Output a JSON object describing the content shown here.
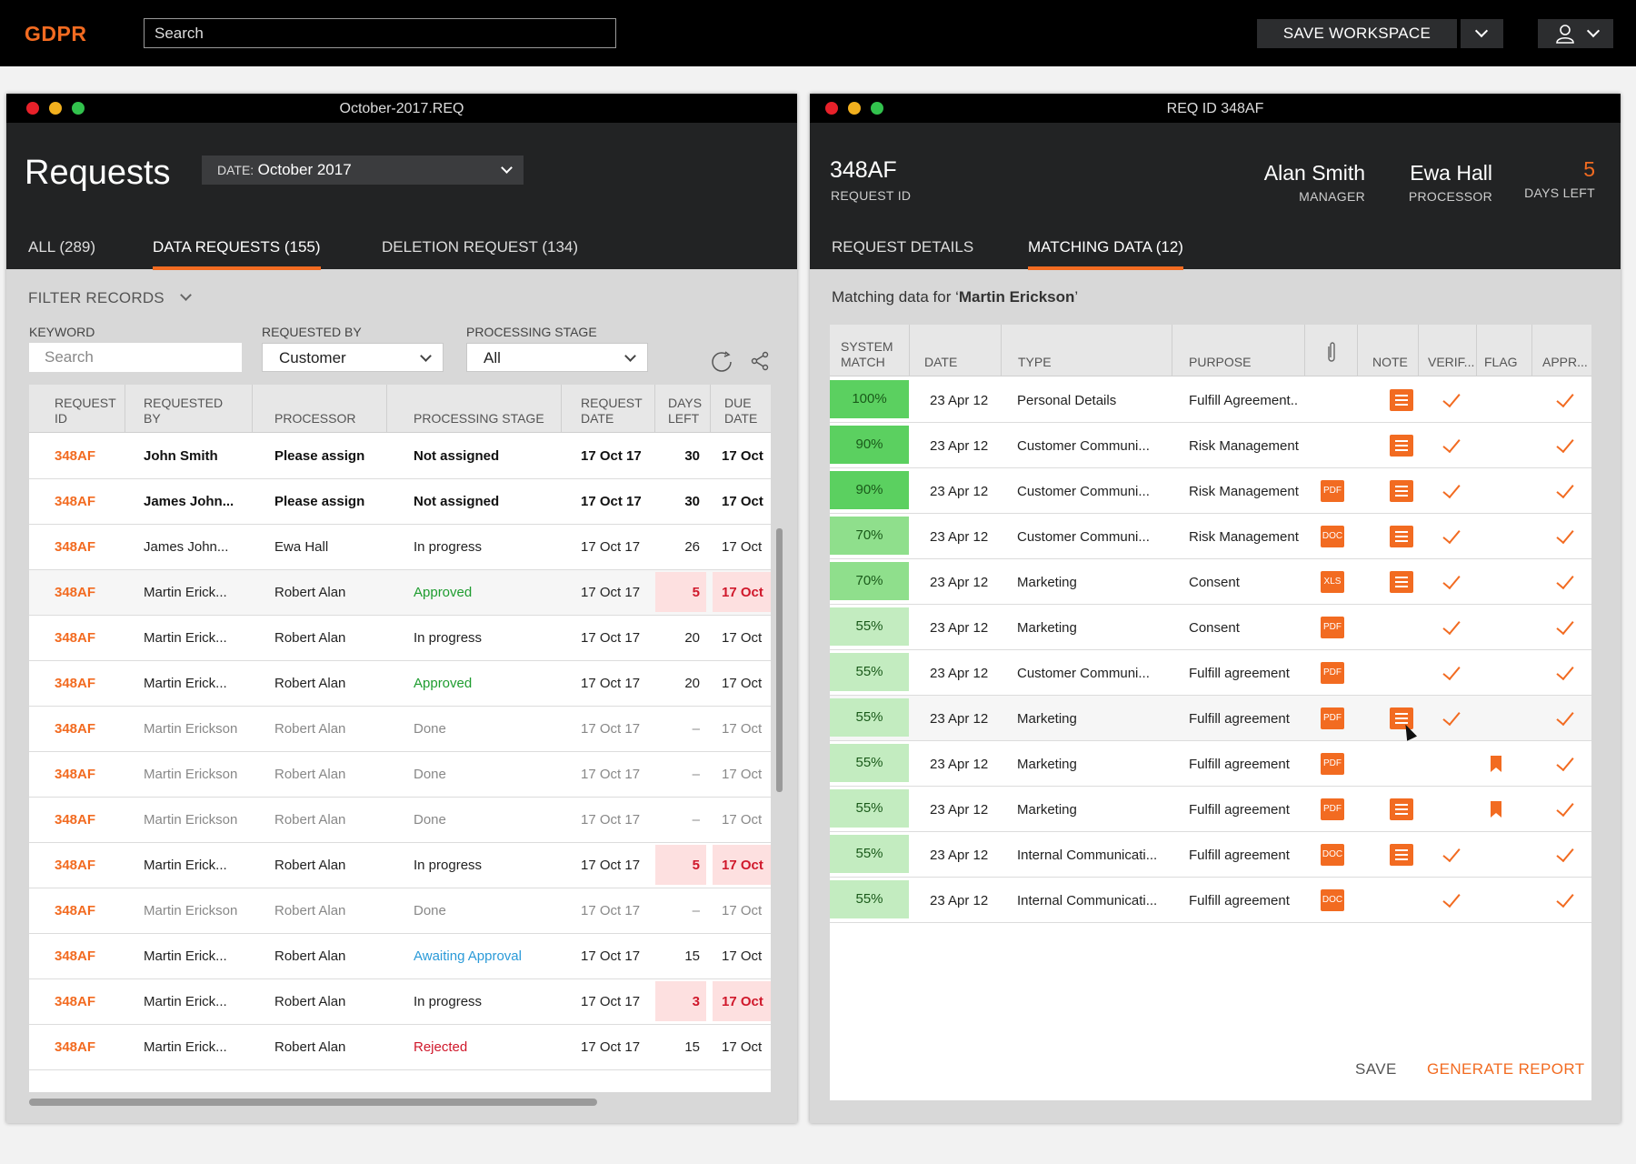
{
  "topbar": {
    "brand": "GDPR",
    "search_placeholder": "Search",
    "save_workspace": "SAVE WORKSPACE"
  },
  "left": {
    "window_title": "October-2017.REQ",
    "title": "Requests",
    "date_label": "DATE:",
    "date_value": "October 2017",
    "tabs": [
      "ALL (289)",
      "DATA REQUESTS (155)",
      "DELETION REQUEST (134)"
    ],
    "active_tab": 1,
    "filter_title": "FILTER RECORDS",
    "filters": {
      "keyword_label": "KEYWORD",
      "keyword_placeholder": "Search",
      "requested_by_label": "REQUESTED BY",
      "requested_by_value": "Customer",
      "stage_label": "PROCESSING STAGE",
      "stage_value": "All"
    },
    "columns": [
      "REQUEST ID",
      "REQUESTED BY",
      "PROCESSOR",
      "PROCESSING STAGE",
      "REQUEST DATE",
      "DAYS LEFT",
      "DUE DATE"
    ],
    "rows": [
      {
        "id": "348AF",
        "by": "John Smith",
        "processor": "Please assign",
        "stage": "Not assigned",
        "date": "17 Oct 17",
        "days": "30",
        "due": "17 Oct",
        "style": "bold",
        "pstyle": "orange",
        "sstyle": "",
        "alert": false
      },
      {
        "id": "348AF",
        "by": "James John...",
        "processor": "Please assign",
        "stage": "Not assigned",
        "date": "17 Oct 17",
        "days": "30",
        "due": "17 Oct",
        "style": "bold",
        "pstyle": "orange",
        "sstyle": "",
        "alert": false
      },
      {
        "id": "348AF",
        "by": "James John...",
        "processor": "Ewa Hall",
        "stage": "In progress",
        "date": "17 Oct 17",
        "days": "26",
        "due": "17 Oct",
        "style": "",
        "pstyle": "",
        "sstyle": "",
        "alert": false
      },
      {
        "id": "348AF",
        "by": "Martin Erick...",
        "processor": "Robert Alan",
        "stage": "Approved",
        "date": "17 Oct 17",
        "days": "5",
        "due": "17 Oct",
        "style": "",
        "pstyle": "",
        "sstyle": "green",
        "alert": true
      },
      {
        "id": "348AF",
        "by": "Martin Erick...",
        "processor": "Robert Alan",
        "stage": "In progress",
        "date": "17 Oct 17",
        "days": "20",
        "due": "17 Oct",
        "style": "",
        "pstyle": "",
        "sstyle": "",
        "alert": false
      },
      {
        "id": "348AF",
        "by": "Martin Erick...",
        "processor": "Robert Alan",
        "stage": "Approved",
        "date": "17 Oct 17",
        "days": "20",
        "due": "17 Oct",
        "style": "",
        "pstyle": "",
        "sstyle": "green",
        "alert": false
      },
      {
        "id": "348AF",
        "by": "Martin Erickson",
        "processor": "Robert Alan",
        "stage": "Done",
        "date": "17 Oct 17",
        "days": "–",
        "due": "17 Oct",
        "style": "dim",
        "pstyle": "",
        "sstyle": "",
        "alert": false
      },
      {
        "id": "348AF",
        "by": "Martin Erickson",
        "processor": "Robert Alan",
        "stage": "Done",
        "date": "17 Oct 17",
        "days": "–",
        "due": "17 Oct",
        "style": "dim",
        "pstyle": "",
        "sstyle": "",
        "alert": false
      },
      {
        "id": "348AF",
        "by": "Martin Erickson",
        "processor": "Robert Alan",
        "stage": "Done",
        "date": "17 Oct 17",
        "days": "–",
        "due": "17 Oct",
        "style": "dim",
        "pstyle": "",
        "sstyle": "",
        "alert": false
      },
      {
        "id": "348AF",
        "by": "Martin Erick...",
        "processor": "Robert Alan",
        "stage": "In progress",
        "date": "17 Oct 17",
        "days": "5",
        "due": "17 Oct",
        "style": "",
        "pstyle": "",
        "sstyle": "",
        "alert": true
      },
      {
        "id": "348AF",
        "by": "Martin Erickson",
        "processor": "Robert Alan",
        "stage": "Done",
        "date": "17 Oct 17",
        "days": "–",
        "due": "17 Oct",
        "style": "dim",
        "pstyle": "",
        "sstyle": "",
        "alert": false
      },
      {
        "id": "348AF",
        "by": "Martin Erick...",
        "processor": "Robert Alan",
        "stage": "Awaiting Approval",
        "date": "17 Oct 17",
        "days": "15",
        "due": "17 Oct",
        "style": "",
        "pstyle": "",
        "sstyle": "blue",
        "alert": false
      },
      {
        "id": "348AF",
        "by": "Martin Erick...",
        "processor": "Robert Alan",
        "stage": "In progress",
        "date": "17 Oct 17",
        "days": "3",
        "due": "17 Oct",
        "style": "",
        "pstyle": "",
        "sstyle": "",
        "alert": true
      },
      {
        "id": "348AF",
        "by": "Martin Erick...",
        "processor": "Robert Alan",
        "stage": "Rejected",
        "date": "17 Oct 17",
        "days": "15",
        "due": "17 Oct",
        "style": "",
        "pstyle": "",
        "sstyle": "red",
        "alert": false
      }
    ]
  },
  "right": {
    "window_title": "REQ ID 348AF",
    "request_id": "348AF",
    "request_id_label": "REQUEST ID",
    "manager_name": "Alan Smith",
    "manager_label": "MANAGER",
    "processor_name": "Ewa Hall",
    "processor_label": "PROCESSOR",
    "days_left": "5",
    "days_left_label": "DAYS LEFT",
    "tabs": [
      "REQUEST DETAILS",
      "MATCHING DATA (12)"
    ],
    "active_tab": 1,
    "matching_prefix": "Matching data for ‘",
    "matching_name": "Martin Erickson",
    "matching_suffix": "’",
    "columns": [
      "SYSTEM MATCH",
      "DATE",
      "TYPE",
      "PURPOSE",
      "paperclip-icon",
      "NOTE",
      "VERIF...",
      "FLAG",
      "APPR..."
    ],
    "rows": [
      {
        "match": "100%",
        "date": "23 Apr 12",
        "type": "Personal Details",
        "purpose": "Fulfill Agreement..",
        "file": "",
        "note": true,
        "verified": true,
        "flag": false,
        "approved": true,
        "level": "high",
        "type_style": "orange"
      },
      {
        "match": "90%",
        "date": "23 Apr 12",
        "type": "Customer Communi...",
        "purpose": "Risk Management",
        "file": "",
        "note": true,
        "verified": true,
        "flag": false,
        "approved": true,
        "level": "high",
        "type_style": ""
      },
      {
        "match": "90%",
        "date": "23 Apr 12",
        "type": "Customer Communi...",
        "purpose": "Risk Management",
        "file": "PDF",
        "note": true,
        "verified": true,
        "flag": false,
        "approved": true,
        "level": "high",
        "type_style": ""
      },
      {
        "match": "70%",
        "date": "23 Apr 12",
        "type": "Customer Communi...",
        "purpose": "Risk Management",
        "file": "DOC",
        "note": true,
        "verified": true,
        "flag": false,
        "approved": true,
        "level": "mid",
        "type_style": ""
      },
      {
        "match": "70%",
        "date": "23 Apr 12",
        "type": "Marketing",
        "purpose": "Consent",
        "file": "XLS",
        "note": true,
        "verified": true,
        "flag": false,
        "approved": true,
        "level": "mid",
        "type_style": ""
      },
      {
        "match": "55%",
        "date": "23 Apr 12",
        "type": "Marketing",
        "purpose": "Consent",
        "file": "PDF",
        "note": false,
        "verified": true,
        "flag": false,
        "approved": true,
        "level": "low",
        "type_style": ""
      },
      {
        "match": "55%",
        "date": "23 Apr 12",
        "type": "Customer Communi...",
        "purpose": "Fulfill agreement",
        "file": "PDF",
        "note": false,
        "verified": true,
        "flag": false,
        "approved": true,
        "level": "low",
        "type_style": ""
      },
      {
        "match": "55%",
        "date": "23 Apr 12",
        "type": "Marketing",
        "purpose": "Fulfill agreement",
        "file": "PDF",
        "note": true,
        "verified": true,
        "flag": false,
        "approved": true,
        "level": "low",
        "type_style": ""
      },
      {
        "match": "55%",
        "date": "23 Apr 12",
        "type": "Marketing",
        "purpose": "Fulfill agreement",
        "file": "PDF",
        "note": false,
        "verified": false,
        "flag": true,
        "approved": true,
        "level": "low",
        "type_style": ""
      },
      {
        "match": "55%",
        "date": "23 Apr 12",
        "type": "Marketing",
        "purpose": "Fulfill agreement",
        "file": "PDF",
        "note": true,
        "verified": false,
        "flag": true,
        "approved": true,
        "level": "low",
        "type_style": ""
      },
      {
        "match": "55%",
        "date": "23 Apr 12",
        "type": "Internal Communicati...",
        "purpose": "Fulfill agreement",
        "file": "DOC",
        "note": true,
        "verified": true,
        "flag": false,
        "approved": true,
        "level": "low",
        "type_style": ""
      },
      {
        "match": "55%",
        "date": "23 Apr 12",
        "type": "Internal Communicati...",
        "purpose": "Fulfill agreement",
        "file": "DOC",
        "note": false,
        "verified": true,
        "flag": false,
        "approved": true,
        "level": "low",
        "type_style": ""
      }
    ],
    "save": "SAVE",
    "generate": "GENERATE REPORT"
  },
  "colors": {
    "accent": "#f26b21",
    "match_high": "#5bd060",
    "match_mid": "#8fdf8c",
    "match_low": "#c3ecc0",
    "alert_bg": "#fde0e0"
  }
}
